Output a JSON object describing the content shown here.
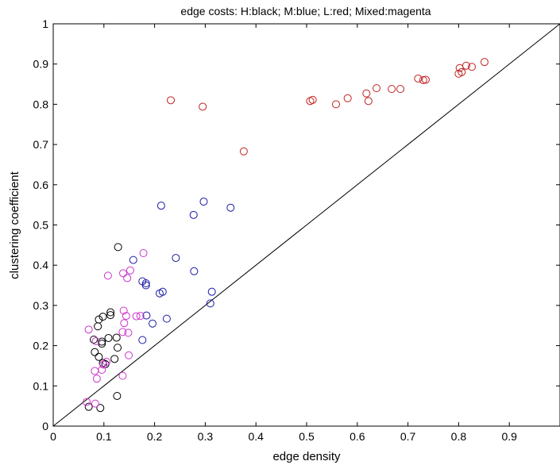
{
  "chart_data": {
    "type": "scatter",
    "title": "edge costs: H:black; M:blue; L:red; Mixed:magenta",
    "xlabel": "edge density",
    "ylabel": "clustering coefficient",
    "xlim": [
      0,
      1
    ],
    "ylim": [
      0,
      1
    ],
    "x_ticks": [
      "0",
      "0.1",
      "0.2",
      "0.3",
      "0.4",
      "0.5",
      "0.6",
      "0.7",
      "0.8",
      "0.9"
    ],
    "y_ticks": [
      "0",
      "0.1",
      "0.2",
      "0.3",
      "0.4",
      "0.5",
      "0.6",
      "0.7",
      "0.8",
      "0.9",
      "1"
    ],
    "grid": false,
    "reference_line": {
      "from": [
        0,
        0
      ],
      "to": [
        1,
        1
      ],
      "color": "#000000"
    },
    "marker": "open-circle",
    "series": [
      {
        "color": "#000000",
        "points": [
          [
            0.128,
            0.445
          ],
          [
            0.113,
            0.283
          ],
          [
            0.113,
            0.276
          ],
          [
            0.098,
            0.272
          ],
          [
            0.09,
            0.265
          ],
          [
            0.088,
            0.248
          ],
          [
            0.08,
            0.215
          ],
          [
            0.096,
            0.21
          ],
          [
            0.096,
            0.205
          ],
          [
            0.109,
            0.219
          ],
          [
            0.125,
            0.22
          ],
          [
            0.127,
            0.195
          ],
          [
            0.082,
            0.184
          ],
          [
            0.09,
            0.172
          ],
          [
            0.098,
            0.157
          ],
          [
            0.103,
            0.154
          ],
          [
            0.121,
            0.167
          ],
          [
            0.126,
            0.075
          ],
          [
            0.07,
            0.048
          ],
          [
            0.093,
            0.045
          ]
        ]
      },
      {
        "color": "#1a1aa6",
        "points": [
          [
            0.213,
            0.548
          ],
          [
            0.297,
            0.558
          ],
          [
            0.277,
            0.525
          ],
          [
            0.35,
            0.543
          ],
          [
            0.242,
            0.418
          ],
          [
            0.158,
            0.413
          ],
          [
            0.278,
            0.385
          ],
          [
            0.176,
            0.36
          ],
          [
            0.183,
            0.355
          ],
          [
            0.183,
            0.35
          ],
          [
            0.21,
            0.33
          ],
          [
            0.216,
            0.334
          ],
          [
            0.313,
            0.334
          ],
          [
            0.31,
            0.305
          ],
          [
            0.184,
            0.275
          ],
          [
            0.196,
            0.255
          ],
          [
            0.224,
            0.267
          ],
          [
            0.176,
            0.214
          ]
        ]
      },
      {
        "color": "#c02222",
        "points": [
          [
            0.232,
            0.81
          ],
          [
            0.295,
            0.794
          ],
          [
            0.376,
            0.683
          ],
          [
            0.507,
            0.808
          ],
          [
            0.512,
            0.811
          ],
          [
            0.558,
            0.8
          ],
          [
            0.581,
            0.815
          ],
          [
            0.618,
            0.827
          ],
          [
            0.622,
            0.808
          ],
          [
            0.638,
            0.84
          ],
          [
            0.668,
            0.838
          ],
          [
            0.685,
            0.838
          ],
          [
            0.72,
            0.864
          ],
          [
            0.73,
            0.86
          ],
          [
            0.735,
            0.861
          ],
          [
            0.8,
            0.876
          ],
          [
            0.802,
            0.89
          ],
          [
            0.806,
            0.88
          ],
          [
            0.815,
            0.896
          ],
          [
            0.826,
            0.893
          ],
          [
            0.851,
            0.905
          ]
        ]
      },
      {
        "color": "#cc33cc",
        "points": [
          [
            0.178,
            0.43
          ],
          [
            0.108,
            0.374
          ],
          [
            0.138,
            0.38
          ],
          [
            0.152,
            0.387
          ],
          [
            0.146,
            0.368
          ],
          [
            0.139,
            0.287
          ],
          [
            0.164,
            0.273
          ],
          [
            0.172,
            0.274
          ],
          [
            0.144,
            0.274
          ],
          [
            0.14,
            0.256
          ],
          [
            0.07,
            0.24
          ],
          [
            0.137,
            0.234
          ],
          [
            0.148,
            0.232
          ],
          [
            0.084,
            0.211
          ],
          [
            0.149,
            0.176
          ],
          [
            0.105,
            0.16
          ],
          [
            0.099,
            0.153
          ],
          [
            0.096,
            0.14
          ],
          [
            0.082,
            0.137
          ],
          [
            0.086,
            0.118
          ],
          [
            0.137,
            0.125
          ],
          [
            0.066,
            0.06
          ],
          [
            0.083,
            0.056
          ]
        ]
      }
    ]
  }
}
